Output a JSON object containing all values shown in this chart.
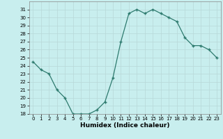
{
  "x": [
    0,
    1,
    2,
    3,
    4,
    5,
    6,
    7,
    8,
    9,
    10,
    11,
    12,
    13,
    14,
    15,
    16,
    17,
    18,
    19,
    20,
    21,
    22,
    23
  ],
  "y": [
    24.5,
    23.5,
    23.0,
    21.0,
    20.0,
    18.0,
    18.0,
    18.0,
    18.5,
    19.5,
    22.5,
    27.0,
    30.5,
    31.0,
    30.5,
    31.0,
    30.5,
    30.0,
    29.5,
    27.5,
    26.5,
    26.5,
    26.0,
    25.0
  ],
  "xlabel": "Humidex (Indice chaleur)",
  "ylim": [
    18,
    32
  ],
  "xlim": [
    -0.5,
    23.5
  ],
  "yticks": [
    18,
    19,
    20,
    21,
    22,
    23,
    24,
    25,
    26,
    27,
    28,
    29,
    30,
    31
  ],
  "xticks": [
    0,
    1,
    2,
    3,
    4,
    5,
    6,
    7,
    8,
    9,
    10,
    11,
    12,
    13,
    14,
    15,
    16,
    17,
    18,
    19,
    20,
    21,
    22,
    23
  ],
  "line_color": "#2d7a6e",
  "bg_color": "#c8eeee",
  "grid_color": "#b8d8d8"
}
